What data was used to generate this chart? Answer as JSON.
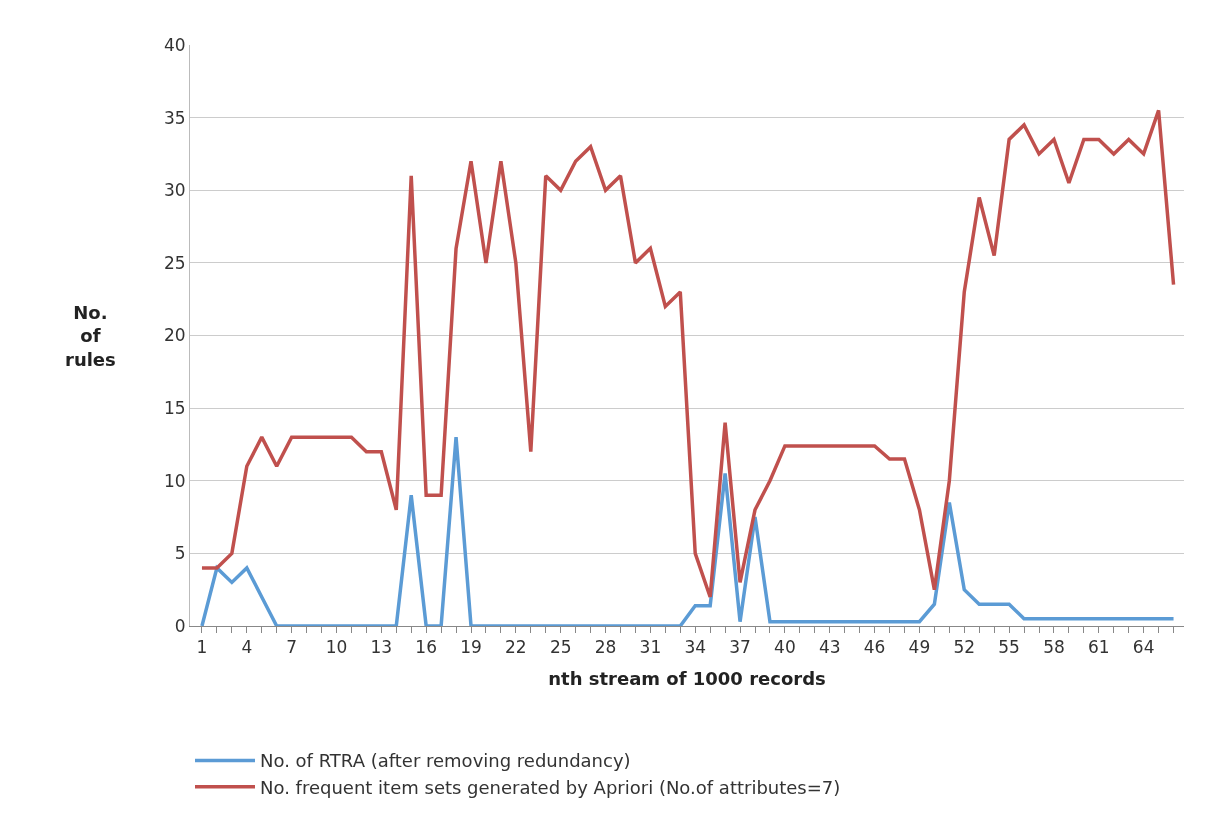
{
  "chart_data": {
    "type": "line",
    "xlabel": "nth stream of 1000 records",
    "ylabel": "No. of rules",
    "categories": [
      "1",
      null,
      null,
      "4",
      null,
      null,
      "7",
      null,
      null,
      "10",
      null,
      null,
      "13",
      null,
      null,
      "16",
      null,
      null,
      "19",
      null,
      null,
      "22",
      null,
      null,
      "25",
      null,
      null,
      "28",
      null,
      null,
      "31",
      null,
      null,
      "34",
      null,
      null,
      "37",
      null,
      null,
      "40",
      null,
      null,
      "43",
      null,
      null,
      "46",
      null,
      null,
      "49",
      null,
      null,
      "52",
      null,
      null,
      "55",
      null,
      null,
      "58",
      null,
      null,
      "61",
      null,
      null,
      "64",
      null,
      null
    ],
    "series": [
      {
        "name": "No. of RTRA (after removing redundancy)",
        "color": "#5b9bd5",
        "values": [
          0,
          4,
          3,
          4,
          2,
          0,
          0,
          0,
          0,
          0,
          0,
          0,
          0,
          0,
          9,
          0,
          0,
          13,
          0,
          0,
          0,
          0,
          0,
          0,
          0,
          0,
          0,
          0,
          0,
          0,
          0,
          0,
          0,
          1.4,
          1.4,
          10.5,
          0.3,
          7.5,
          0.3,
          0.3,
          0.3,
          0.3,
          0.3,
          0.3,
          0.3,
          0.3,
          0.3,
          0.3,
          0.3,
          1.5,
          8.5,
          2.5,
          1.5,
          1.5,
          1.5,
          0.5,
          0.5,
          0.5,
          0.5,
          0.5,
          0.5,
          0.5,
          0.5,
          0.5,
          0.5,
          0.5
        ]
      },
      {
        "name": "No. frequent item sets generated by Apriori (No.of attributes=7)",
        "color": "#c0504d",
        "values": [
          4,
          4,
          5,
          11,
          13,
          11,
          13,
          13,
          13,
          13,
          13,
          12,
          12,
          8,
          31,
          9,
          9,
          26,
          32,
          25,
          32,
          25,
          12,
          31,
          30,
          32,
          33,
          30,
          31,
          25,
          26,
          22,
          23,
          5,
          2,
          14,
          3,
          8,
          10,
          12.4,
          12.4,
          12.4,
          12.4,
          12.4,
          12.4,
          12.4,
          11.5,
          11.5,
          8,
          2.5,
          10,
          23,
          29.5,
          25.5,
          33.5,
          34.5,
          32.5,
          33.5,
          30.5,
          33.5,
          33.5,
          32.5,
          33.5,
          32.5,
          35.5,
          23.5
        ]
      }
    ],
    "ylim": [
      0,
      40
    ],
    "yticks": [
      0,
      5,
      10,
      15,
      20,
      25,
      30,
      35,
      40
    ],
    "grid": "y",
    "legend": "bottom",
    "marker": "none",
    "line_style": "solid"
  }
}
